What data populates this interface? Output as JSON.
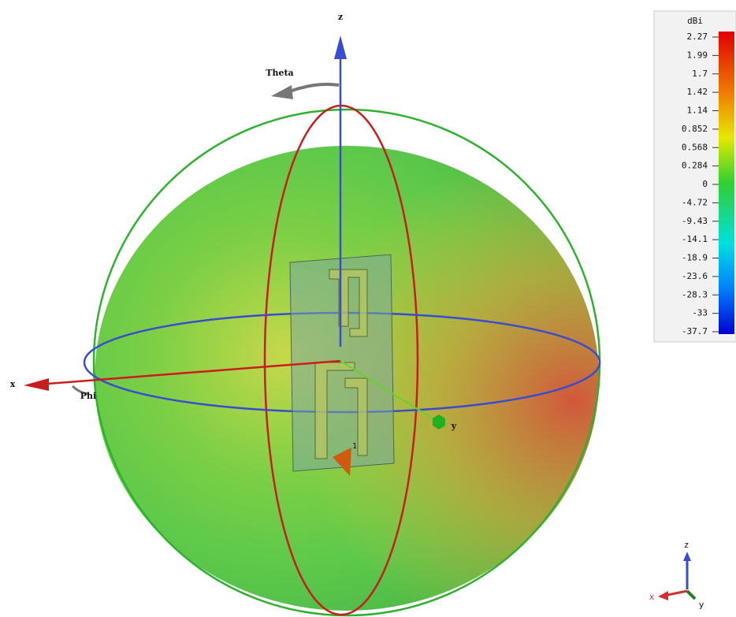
{
  "scene": {
    "axes": {
      "z": "z",
      "x": "x",
      "y": "y",
      "theta": "Theta",
      "phi": "Phi",
      "port": "1"
    },
    "mini_axes": {
      "z": "z",
      "x": "x",
      "y": "y"
    }
  },
  "colorbar": {
    "unit": "dBi",
    "ticks": [
      2.27,
      1.99,
      1.7,
      1.42,
      1.14,
      0.852,
      0.568,
      0.284,
      0,
      -4.72,
      -9.43,
      -14.1,
      -18.9,
      -23.6,
      -28.3,
      -33,
      -37.7
    ]
  }
}
